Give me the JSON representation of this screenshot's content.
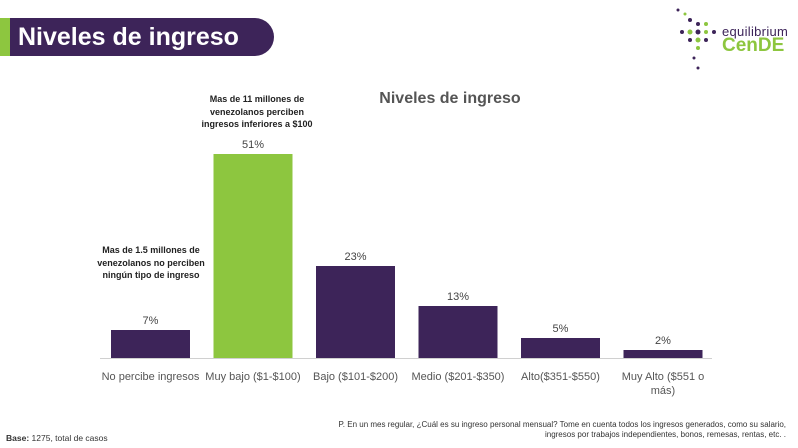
{
  "header": {
    "title": "Niveles de ingreso"
  },
  "logo": {
    "top": "equilibrium",
    "bottom": "CenDE"
  },
  "colors": {
    "primary": "#3d2459",
    "accent": "#8dc63f"
  },
  "chart_data": {
    "type": "bar",
    "title": "Niveles de ingreso",
    "categories": [
      "No percibe ingresos",
      "Muy bajo ($1-$100)",
      "Bajo ($101-$200)",
      "Medio ($201-$350)",
      "Alto($351-$550)",
      "Muy Alto ($551 o más)"
    ],
    "values": [
      7,
      51,
      23,
      13,
      5,
      2
    ],
    "value_labels": [
      "7%",
      "51%",
      "23%",
      "13%",
      "5%",
      "2%"
    ],
    "highlight_index": 1,
    "ylim": [
      0,
      51
    ],
    "grid": false,
    "legend": "none",
    "annotations": [
      "Mas de 11 millones de venezolanos perciben ingresos inferiores a $100",
      "Mas de 1.5 millones de venezolanos no perciben ningún tipo de ingreso"
    ]
  },
  "footnote": "P. En un mes regular, ¿Cuál es su ingreso personal mensual? Tome en cuenta todos los ingresos generados, como su salario, ingresos por trabajos independientes, bonos, remesas, rentas, etc. .",
  "base": {
    "label": "Base:",
    "text": "1275, total de casos"
  }
}
